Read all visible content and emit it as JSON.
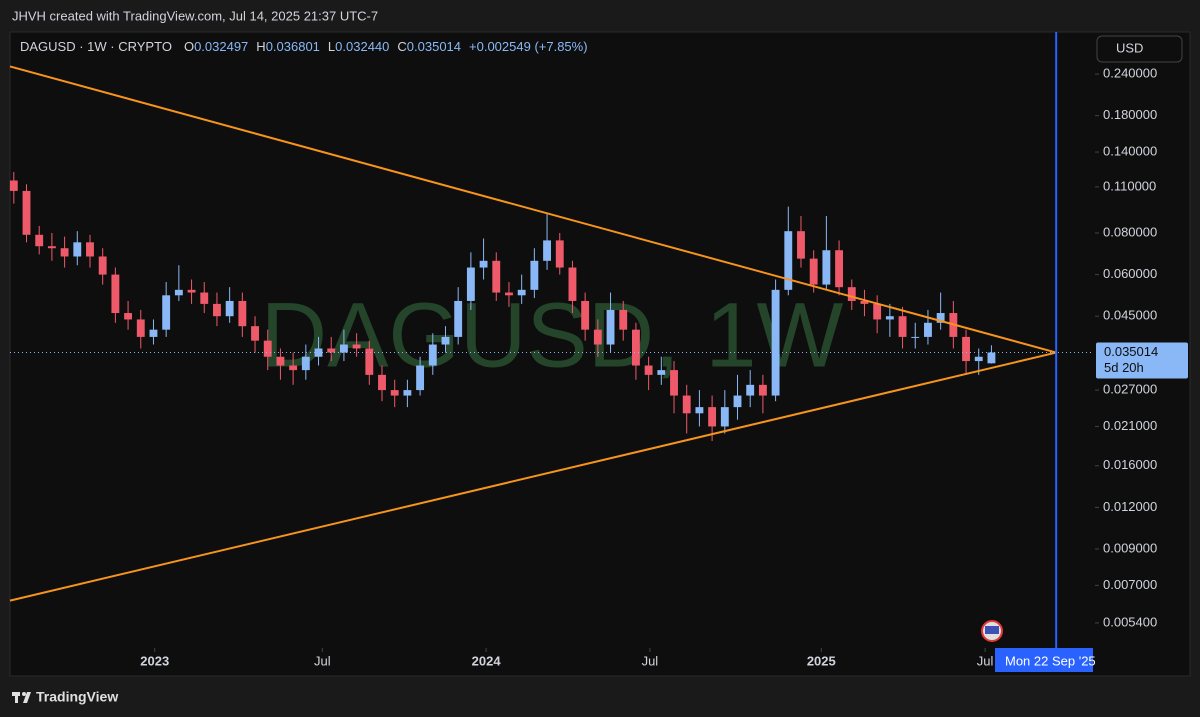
{
  "header": "JHVH created with TradingView.com, Jul 14, 2025 21:37 UTC-7",
  "brand": "TradingView",
  "chart_data": {
    "type": "candlestick",
    "watermark": "DAGUSD, 1W",
    "currency": "USD",
    "legend": {
      "symbol": "DAGUSD · 1W · CRYPTO",
      "labels": [
        "O",
        "H",
        "L",
        "C"
      ],
      "values": [
        "0.032497",
        "0.036801",
        "0.032440",
        "0.035014"
      ],
      "change": "+0.002549 (+7.85%)"
    },
    "countdown": "5d 20h",
    "up_color": "#8ab8f6",
    "down_color": "#ef5a6a",
    "log_scale": true,
    "open": [
      0.115,
      0.107,
      0.079,
      0.073,
      0.072,
      0.068,
      0.075,
      0.068,
      0.06,
      0.046,
      0.044,
      0.039,
      0.041,
      0.052,
      0.054,
      0.053,
      0.049,
      0.045,
      0.05,
      0.042,
      0.038,
      0.034,
      0.032,
      0.031,
      0.034,
      0.036,
      0.035,
      0.037,
      0.036,
      0.03,
      0.027,
      0.026,
      0.027,
      0.032,
      0.037,
      0.039,
      0.05,
      0.063,
      0.066,
      0.053,
      0.052,
      0.054,
      0.066,
      0.076,
      0.063,
      0.05,
      0.041,
      0.037,
      0.047,
      0.041,
      0.032,
      0.03,
      0.031,
      0.026,
      0.023,
      0.024,
      0.021,
      0.024,
      0.026,
      0.028,
      0.026,
      0.054,
      0.081,
      0.067,
      0.056,
      0.071,
      0.055,
      0.05,
      0.049,
      0.044,
      0.045,
      0.039,
      0.039,
      0.043,
      0.046,
      0.039,
      0.033,
      0.032497
    ],
    "high": [
      0.122,
      0.112,
      0.084,
      0.08,
      0.078,
      0.081,
      0.079,
      0.072,
      0.063,
      0.05,
      0.047,
      0.044,
      0.057,
      0.064,
      0.058,
      0.057,
      0.053,
      0.055,
      0.053,
      0.045,
      0.041,
      0.036,
      0.035,
      0.037,
      0.039,
      0.039,
      0.041,
      0.04,
      0.038,
      0.032,
      0.029,
      0.029,
      0.034,
      0.04,
      0.042,
      0.055,
      0.07,
      0.077,
      0.07,
      0.057,
      0.06,
      0.072,
      0.092,
      0.08,
      0.066,
      0.053,
      0.044,
      0.053,
      0.05,
      0.043,
      0.034,
      0.034,
      0.033,
      0.028,
      0.027,
      0.026,
      0.027,
      0.03,
      0.031,
      0.03,
      0.058,
      0.096,
      0.09,
      0.071,
      0.09,
      0.076,
      0.058,
      0.054,
      0.052,
      0.049,
      0.048,
      0.043,
      0.047,
      0.053,
      0.05,
      0.041,
      0.036,
      0.036801
    ],
    "low": [
      0.098,
      0.075,
      0.069,
      0.066,
      0.063,
      0.064,
      0.063,
      0.056,
      0.043,
      0.041,
      0.036,
      0.037,
      0.039,
      0.05,
      0.049,
      0.046,
      0.042,
      0.043,
      0.039,
      0.035,
      0.031,
      0.029,
      0.028,
      0.029,
      0.032,
      0.033,
      0.033,
      0.034,
      0.028,
      0.025,
      0.024,
      0.024,
      0.026,
      0.03,
      0.035,
      0.037,
      0.047,
      0.058,
      0.05,
      0.048,
      0.049,
      0.051,
      0.062,
      0.06,
      0.046,
      0.038,
      0.034,
      0.035,
      0.038,
      0.029,
      0.027,
      0.028,
      0.023,
      0.02,
      0.021,
      0.019,
      0.02,
      0.022,
      0.024,
      0.023,
      0.025,
      0.052,
      0.063,
      0.053,
      0.054,
      0.052,
      0.047,
      0.045,
      0.04,
      0.039,
      0.036,
      0.036,
      0.037,
      0.041,
      0.036,
      0.03,
      0.03,
      0.03244
    ],
    "close": [
      0.107,
      0.079,
      0.073,
      0.072,
      0.068,
      0.075,
      0.068,
      0.06,
      0.046,
      0.044,
      0.039,
      0.041,
      0.052,
      0.054,
      0.053,
      0.049,
      0.045,
      0.05,
      0.042,
      0.038,
      0.034,
      0.032,
      0.031,
      0.034,
      0.036,
      0.035,
      0.037,
      0.036,
      0.03,
      0.027,
      0.026,
      0.027,
      0.032,
      0.037,
      0.039,
      0.05,
      0.063,
      0.066,
      0.053,
      0.052,
      0.054,
      0.066,
      0.076,
      0.063,
      0.05,
      0.041,
      0.037,
      0.047,
      0.041,
      0.032,
      0.03,
      0.031,
      0.026,
      0.023,
      0.024,
      0.021,
      0.024,
      0.026,
      0.028,
      0.026,
      0.054,
      0.081,
      0.067,
      0.056,
      0.071,
      0.055,
      0.05,
      0.049,
      0.044,
      0.045,
      0.039,
      0.039,
      0.043,
      0.046,
      0.039,
      0.033,
      0.034,
      0.035014
    ],
    "xlim": [
      -0.3,
      85
    ],
    "xticks": [
      {
        "value": 11.1,
        "label": "2023"
      },
      {
        "value": 24.3,
        "label": "Jul"
      },
      {
        "value": 37.2,
        "label": "2024"
      },
      {
        "value": 50.1,
        "label": "Jul"
      },
      {
        "value": 63.6,
        "label": "2025"
      },
      {
        "value": 76.5,
        "label": "Jul"
      }
    ],
    "ylim": [
      0.00454,
      0.321
    ],
    "yticks": [
      {
        "value": 0.24,
        "label": "0.240000"
      },
      {
        "value": 0.18,
        "label": "0.180000"
      },
      {
        "value": 0.14,
        "label": "0.140000"
      },
      {
        "value": 0.11,
        "label": "0.110000"
      },
      {
        "value": 0.08,
        "label": "0.080000"
      },
      {
        "value": 0.06,
        "label": "0.060000"
      },
      {
        "value": 0.045,
        "label": "0.045000"
      },
      {
        "value": 0.027,
        "label": "0.027000"
      },
      {
        "value": 0.021,
        "label": "0.021000"
      },
      {
        "value": 0.016,
        "label": "0.016000"
      },
      {
        "value": 0.012,
        "label": "0.012000"
      },
      {
        "value": 0.009,
        "label": "0.009000"
      },
      {
        "value": 0.007,
        "label": "0.007000"
      },
      {
        "value": 0.0054,
        "label": "0.005400"
      }
    ],
    "trendlines": [
      {
        "color": "#f7941d",
        "x": [
          -0.3,
          82.1
        ],
        "y": [
          0.253,
          0.035
        ]
      },
      {
        "color": "#f7941d",
        "x": [
          -0.3,
          82.1
        ],
        "y": [
          0.0063,
          0.035
        ]
      }
    ],
    "event_line": {
      "x": 82.1,
      "label": "Mon 22 Sep '25",
      "color": "#2962ff"
    }
  }
}
